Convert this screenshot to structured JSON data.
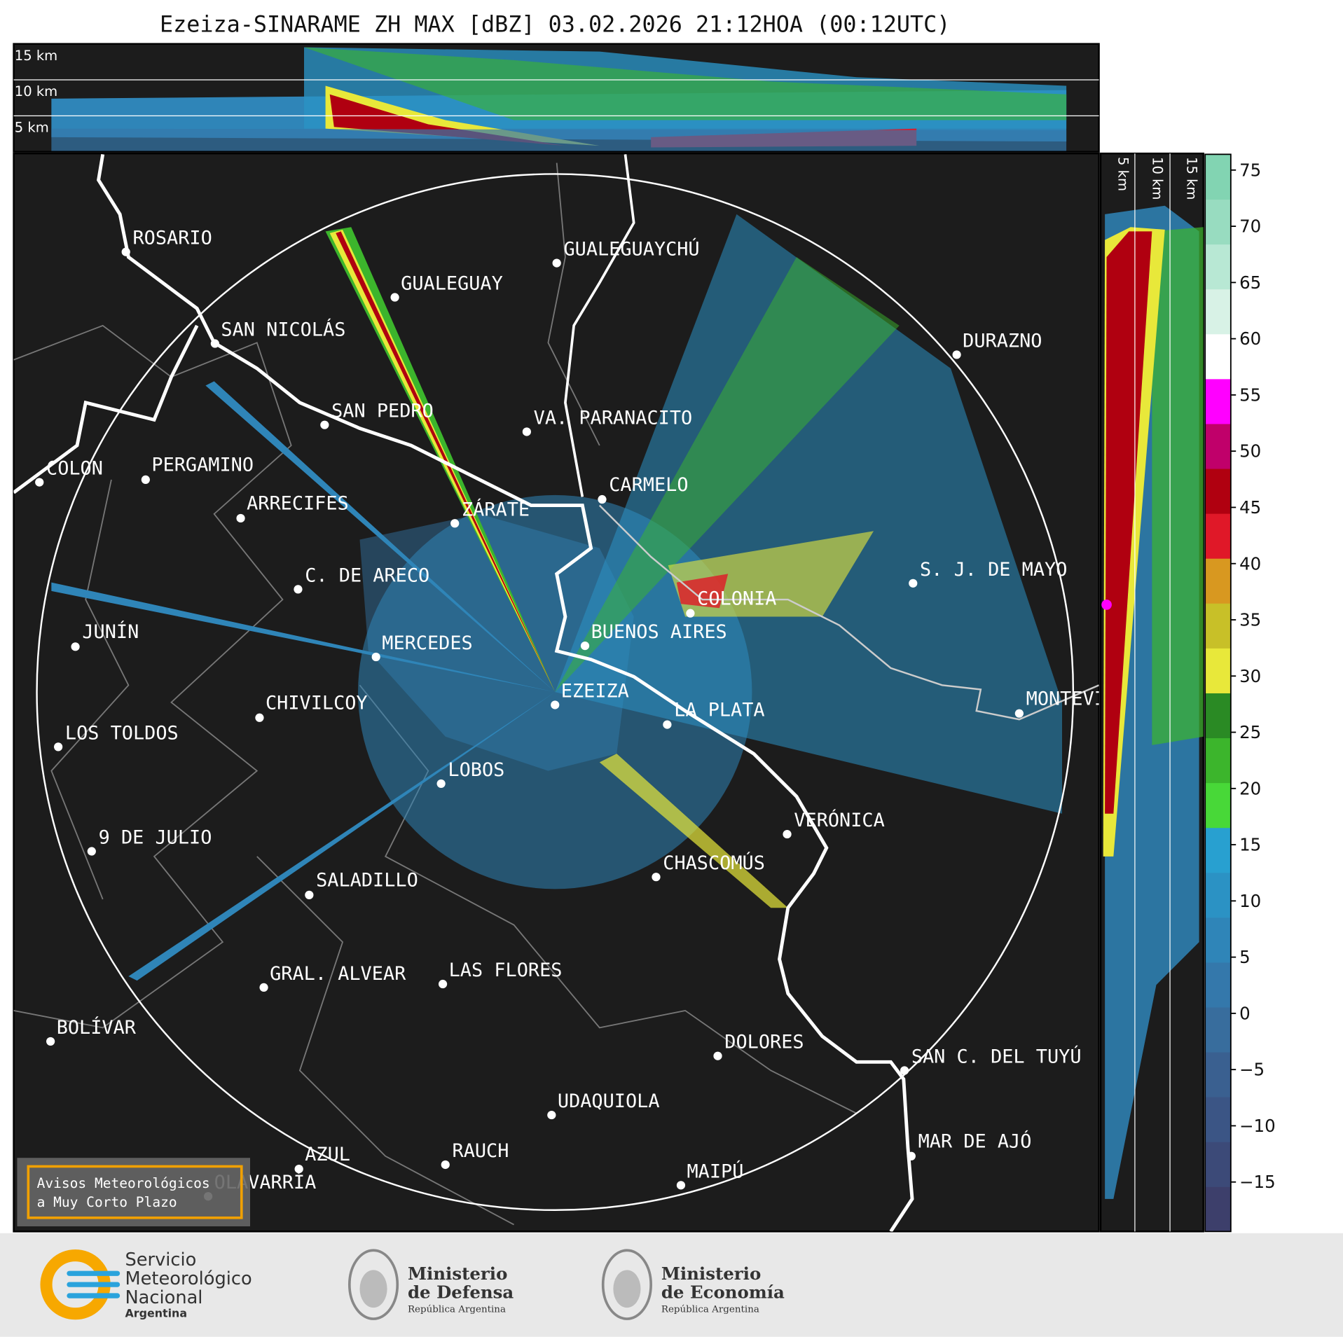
{
  "title": "Ezeiza-SINARAME ZH MAX [dBZ] 03.02.2026 21:12HOA (00:12UTC)",
  "top_panel_labels": [
    "15 km",
    "10 km",
    "5 km"
  ],
  "right_panel_labels": [
    "5 km",
    "10 km",
    "15 km"
  ],
  "cities": [
    "ROSARIO",
    "GUALEGUAYCHÚ",
    "GUALEGUAY",
    "SAN NICOLÁS",
    "DURAZNO",
    "SAN PEDRO",
    "VA. PARANACITO",
    "COLON",
    "PERGAMINO",
    "CARMELO",
    "ARRECIFES",
    "ZÁRATE",
    "S. J. DE MAYO",
    "C. DE ARECO",
    "COLONIA",
    "BUENOS AIRES",
    "JUNÍN",
    "MERCEDES",
    "EZEIZA",
    "CHIVILCOY",
    "LA PLATA",
    "MONTEVIDEO",
    "LOS TOLDOS",
    "LOBOS",
    "VERÓNICA",
    "9 DE JULIO",
    "CHASCOMÚS",
    "SALADILLO",
    "LAS FLORES",
    "GRAL. ALVEAR",
    "BOLÍVAR",
    "DOLORES",
    "SAN C. DEL TUYÚ",
    "UDAQUIOLA",
    "MAR DE AJÓ",
    "AZUL",
    "RAUCH",
    "OLAVARRÍA",
    "MAIPÚ"
  ],
  "notice": [
    "Avisos Meteorológicos",
    "a Muy Corto Plazo"
  ],
  "colorbar": {
    "lim": [
      -19.4,
      76.4
    ],
    "ticks": [
      {
        "value": -15,
        "label": "−15"
      },
      {
        "value": -10,
        "label": "−10"
      },
      {
        "value": -5,
        "label": "−5"
      },
      0,
      5,
      10,
      15,
      20,
      25,
      30,
      35,
      40,
      45,
      50,
      55,
      60,
      65,
      70,
      75
    ],
    "colors": [
      "#3d3f6b",
      "#3c4a78",
      "#3b5585",
      "#3a6090",
      "#386d9d",
      "#3478ab",
      "#2f85b8",
      "#2b92c4",
      "#28a0d0",
      "#48d838",
      "#3cb52c",
      "#2a8a24",
      "#e8e83a",
      "#c8c028",
      "#d89820",
      "#e01828",
      "#b00010",
      "#c0006a",
      "#ff00ff",
      "#ffffff",
      "#d8f2e6",
      "#b8e8d4",
      "#98dcc0",
      "#82d4b2"
    ]
  },
  "footer": {
    "smn": [
      "Servicio",
      "Meteorológico",
      "Nacional",
      "Argentina"
    ],
    "defensa": [
      "Ministerio",
      "de Defensa",
      "República Argentina"
    ],
    "economia": [
      "Ministerio",
      "de Economía",
      "República Argentina"
    ]
  }
}
